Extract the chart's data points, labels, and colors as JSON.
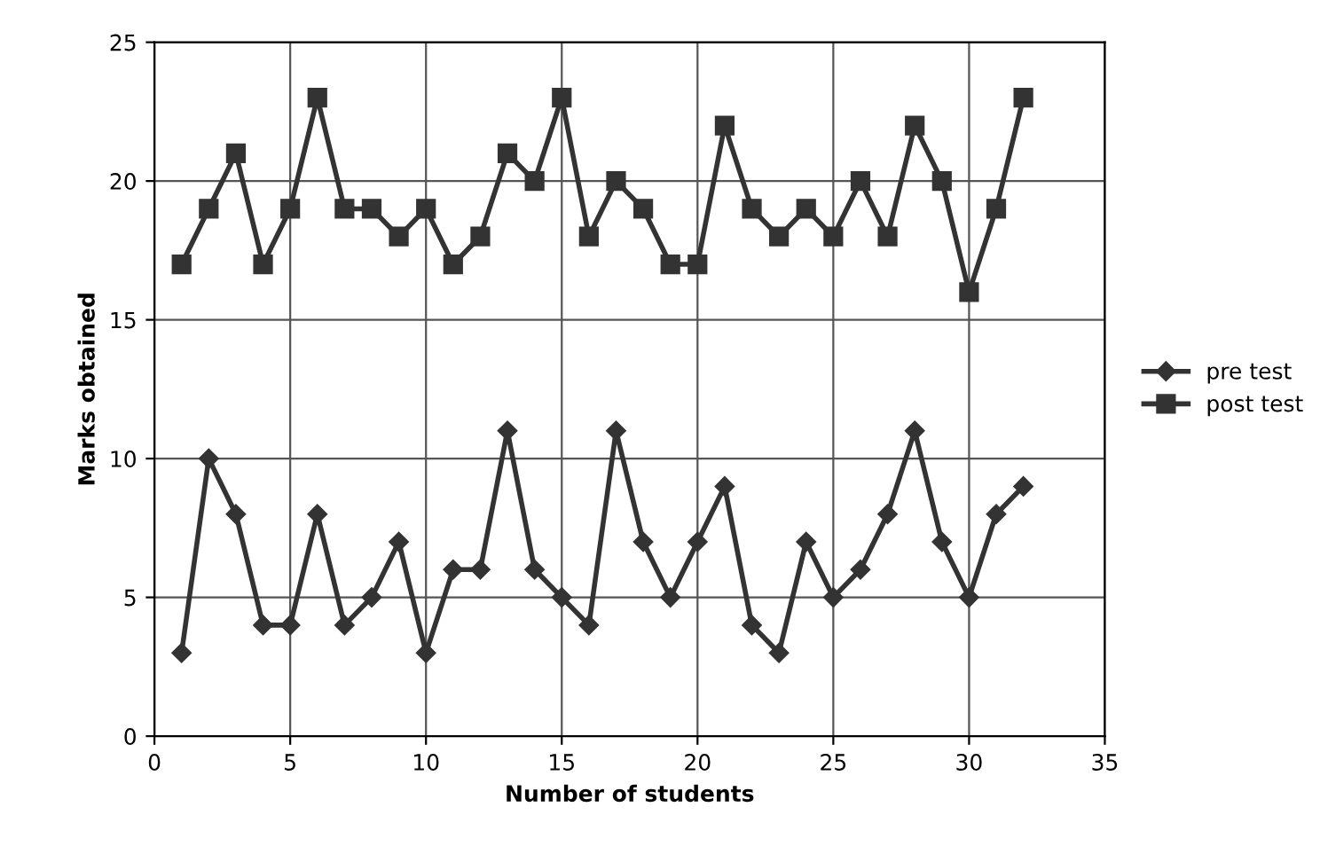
{
  "chart_data": {
    "type": "line",
    "xlabel": "Number of students",
    "ylabel": "Marks obtained",
    "x": [
      1,
      2,
      3,
      4,
      5,
      6,
      7,
      8,
      9,
      10,
      11,
      12,
      13,
      14,
      15,
      16,
      17,
      18,
      19,
      20,
      21,
      22,
      23,
      24,
      25,
      26,
      27,
      28,
      29,
      30,
      31,
      32
    ],
    "series": [
      {
        "name": "pre test",
        "color": "#333333",
        "marker": "diamond",
        "values": [
          3,
          10,
          8,
          4,
          4,
          8,
          4,
          5,
          7,
          3,
          6,
          6,
          11,
          6,
          5,
          4,
          11,
          7,
          5,
          7,
          9,
          4,
          3,
          7,
          5,
          6,
          8,
          11,
          7,
          5,
          8,
          9
        ]
      },
      {
        "name": "post test",
        "color": "#333333",
        "marker": "square",
        "values": [
          17,
          19,
          21,
          17,
          19,
          23,
          19,
          19,
          18,
          19,
          17,
          18,
          21,
          20,
          23,
          18,
          20,
          19,
          17,
          17,
          22,
          19,
          18,
          19,
          18,
          20,
          18,
          22,
          20,
          16,
          19,
          23
        ]
      }
    ],
    "xlim": [
      0,
      35
    ],
    "xticks": [
      0,
      5,
      10,
      15,
      20,
      25,
      30,
      35
    ],
    "ylim": [
      0,
      25
    ],
    "yticks": [
      0,
      5,
      10,
      15,
      20,
      25
    ],
    "grid": true,
    "legend": "right",
    "line_style": "solid"
  }
}
